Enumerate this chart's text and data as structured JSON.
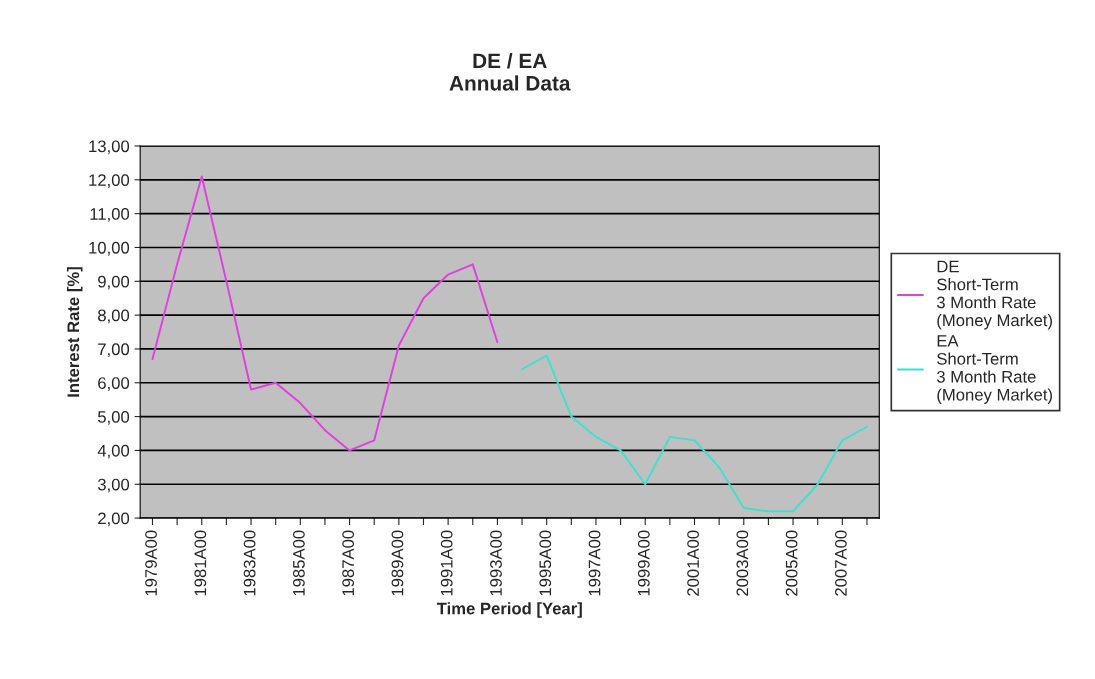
{
  "chart_data": {
    "type": "line",
    "title": "DE / EA\nAnnual Data",
    "xlabel": "Time Period [Year]",
    "ylabel": "Interest Rate [%]",
    "categories": [
      "1979A00",
      null,
      "1981A00",
      null,
      "1983A00",
      null,
      "1985A00",
      null,
      "1987A00",
      null,
      "1989A00",
      null,
      "1991A00",
      null,
      "1993A00",
      null,
      "1995A00",
      null,
      "1997A00",
      null,
      "1999A00",
      null,
      "2001A00",
      null,
      "2003A00",
      null,
      "2005A00",
      null,
      "2007A00",
      null
    ],
    "series": [
      {
        "name": "DE\nShort-Term\n3 Month Rate\n(Money Market)",
        "color": "#e040e0",
        "values": [
          6.7,
          9.5,
          12.1,
          9.0,
          5.8,
          6.0,
          5.4,
          4.6,
          4.0,
          4.3,
          7.1,
          8.5,
          9.2,
          9.5,
          7.2,
          null,
          null,
          null,
          null,
          null,
          null,
          null,
          null,
          null,
          null,
          null,
          null,
          null,
          null,
          null
        ]
      },
      {
        "name": "EA\nShort-Term\n3 Month Rate\n(Money Market)",
        "color": "#40e0d0",
        "values": [
          null,
          null,
          null,
          null,
          null,
          null,
          null,
          null,
          null,
          null,
          null,
          null,
          null,
          null,
          null,
          6.4,
          6.8,
          5.0,
          4.4,
          4.0,
          3.0,
          4.4,
          4.3,
          3.5,
          2.3,
          2.2,
          2.2,
          3.0,
          4.3,
          4.7
        ]
      }
    ],
    "ylim": [
      2,
      13
    ],
    "yticks": [
      {
        "value": 2,
        "label": "2,00"
      },
      {
        "value": 3,
        "label": "3,00"
      },
      {
        "value": 4,
        "label": "4,00"
      },
      {
        "value": 5,
        "label": "5,00"
      },
      {
        "value": 6,
        "label": "6,00"
      },
      {
        "value": 7,
        "label": "7,00"
      },
      {
        "value": 8,
        "label": "8,00"
      },
      {
        "value": 9,
        "label": "9,00"
      },
      {
        "value": 10,
        "label": "10,00"
      },
      {
        "value": 11,
        "label": "11,00"
      },
      {
        "value": 12,
        "label": "12,00"
      },
      {
        "value": 13,
        "label": "13,00"
      }
    ],
    "grid": "y",
    "legend": "right"
  }
}
